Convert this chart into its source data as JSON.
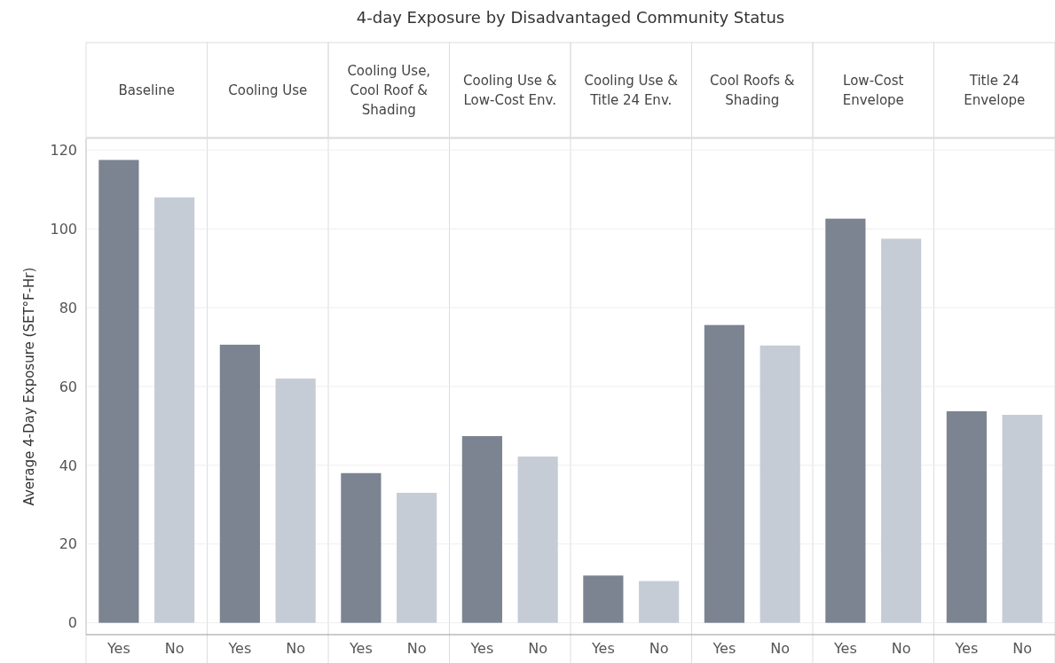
{
  "chart_data": [
    {
      "type": "bar",
      "annotations": [
        "4-day Exposure by Disadvantaged Community Status"
      ],
      "subtitle": "Baseline",
      "ylabel": "Average 4-Day Exposure (SET°F-Hr)",
      "categories": [
        "Yes",
        "No"
      ],
      "values": [
        117.5,
        108
      ],
      "colors": [
        "#7b8490",
        "#c5ccd6"
      ],
      "ylim": [
        -3,
        123
      ],
      "yticks": [
        0,
        20,
        40,
        60,
        80,
        100,
        120
      ],
      "grid": "y"
    },
    {
      "type": "bar",
      "subtitle": "Cooling Use",
      "categories": [
        "Yes",
        "No"
      ],
      "values": [
        70.6,
        62
      ],
      "colors": [
        "#7b8490",
        "#c5ccd6"
      ],
      "ylim": [
        -3,
        123
      ],
      "yticks": [
        0,
        20,
        40,
        60,
        80,
        100,
        120
      ],
      "grid": "y",
      "tick_labels": "x"
    },
    {
      "type": "bar",
      "subtitle": "Cooling Use, Cool Roof & Shading",
      "categories": [
        "Yes",
        "No"
      ],
      "values": [
        38,
        33
      ],
      "colors": [
        "#7b8490",
        "#c5ccd6"
      ],
      "ylim": [
        -3,
        123
      ],
      "yticks": [
        0,
        20,
        40,
        60,
        80,
        100,
        120
      ],
      "grid": "y",
      "tick_labels": "x"
    },
    {
      "type": "bar",
      "subtitle": "Cooling Use & Low-Cost Env.",
      "categories": [
        "Yes",
        "No"
      ],
      "values": [
        47.4,
        42.2
      ],
      "colors": [
        "#7b8490",
        "#c5ccd6"
      ],
      "ylim": [
        -3,
        123
      ],
      "yticks": [
        0,
        20,
        40,
        60,
        80,
        100,
        120
      ],
      "grid": "y",
      "tick_labels": "x"
    },
    {
      "type": "bar",
      "subtitle": "Cooling Use & Title 24 Env.",
      "categories": [
        "Yes",
        "No"
      ],
      "values": [
        12,
        10.6
      ],
      "colors": [
        "#7b8490",
        "#c5ccd6"
      ],
      "ylim": [
        -3,
        123
      ],
      "yticks": [
        0,
        20,
        40,
        60,
        80,
        100,
        120
      ],
      "grid": "y",
      "tick_labels": "x"
    },
    {
      "type": "bar",
      "subtitle": "Cool Roofs & Shading",
      "categories": [
        "Yes",
        "No"
      ],
      "values": [
        75.6,
        70.4
      ],
      "colors": [
        "#7b8490",
        "#c5ccd6"
      ],
      "ylim": [
        -3,
        123
      ],
      "yticks": [
        0,
        20,
        40,
        60,
        80,
        100,
        120
      ],
      "grid": "y",
      "tick_labels": "x"
    },
    {
      "type": "bar",
      "subtitle": "Low-Cost Envelope",
      "categories": [
        "Yes",
        "No"
      ],
      "values": [
        102.6,
        97.5
      ],
      "colors": [
        "#7b8490",
        "#c5ccd6"
      ],
      "ylim": [
        -3,
        123
      ],
      "yticks": [
        0,
        20,
        40,
        60,
        80,
        100,
        120
      ],
      "grid": "y",
      "tick_labels": "x"
    },
    {
      "type": "bar",
      "subtitle": "Title 24 Envelope",
      "categories": [
        "Yes",
        "No"
      ],
      "values": [
        53.7,
        52.8
      ],
      "colors": [
        "#7b8490",
        "#c5ccd6"
      ],
      "ylim": [
        -3,
        123
      ],
      "yticks": [
        0,
        20,
        40,
        60,
        80,
        100,
        120
      ],
      "grid": "y",
      "tick_labels": "x"
    }
  ]
}
